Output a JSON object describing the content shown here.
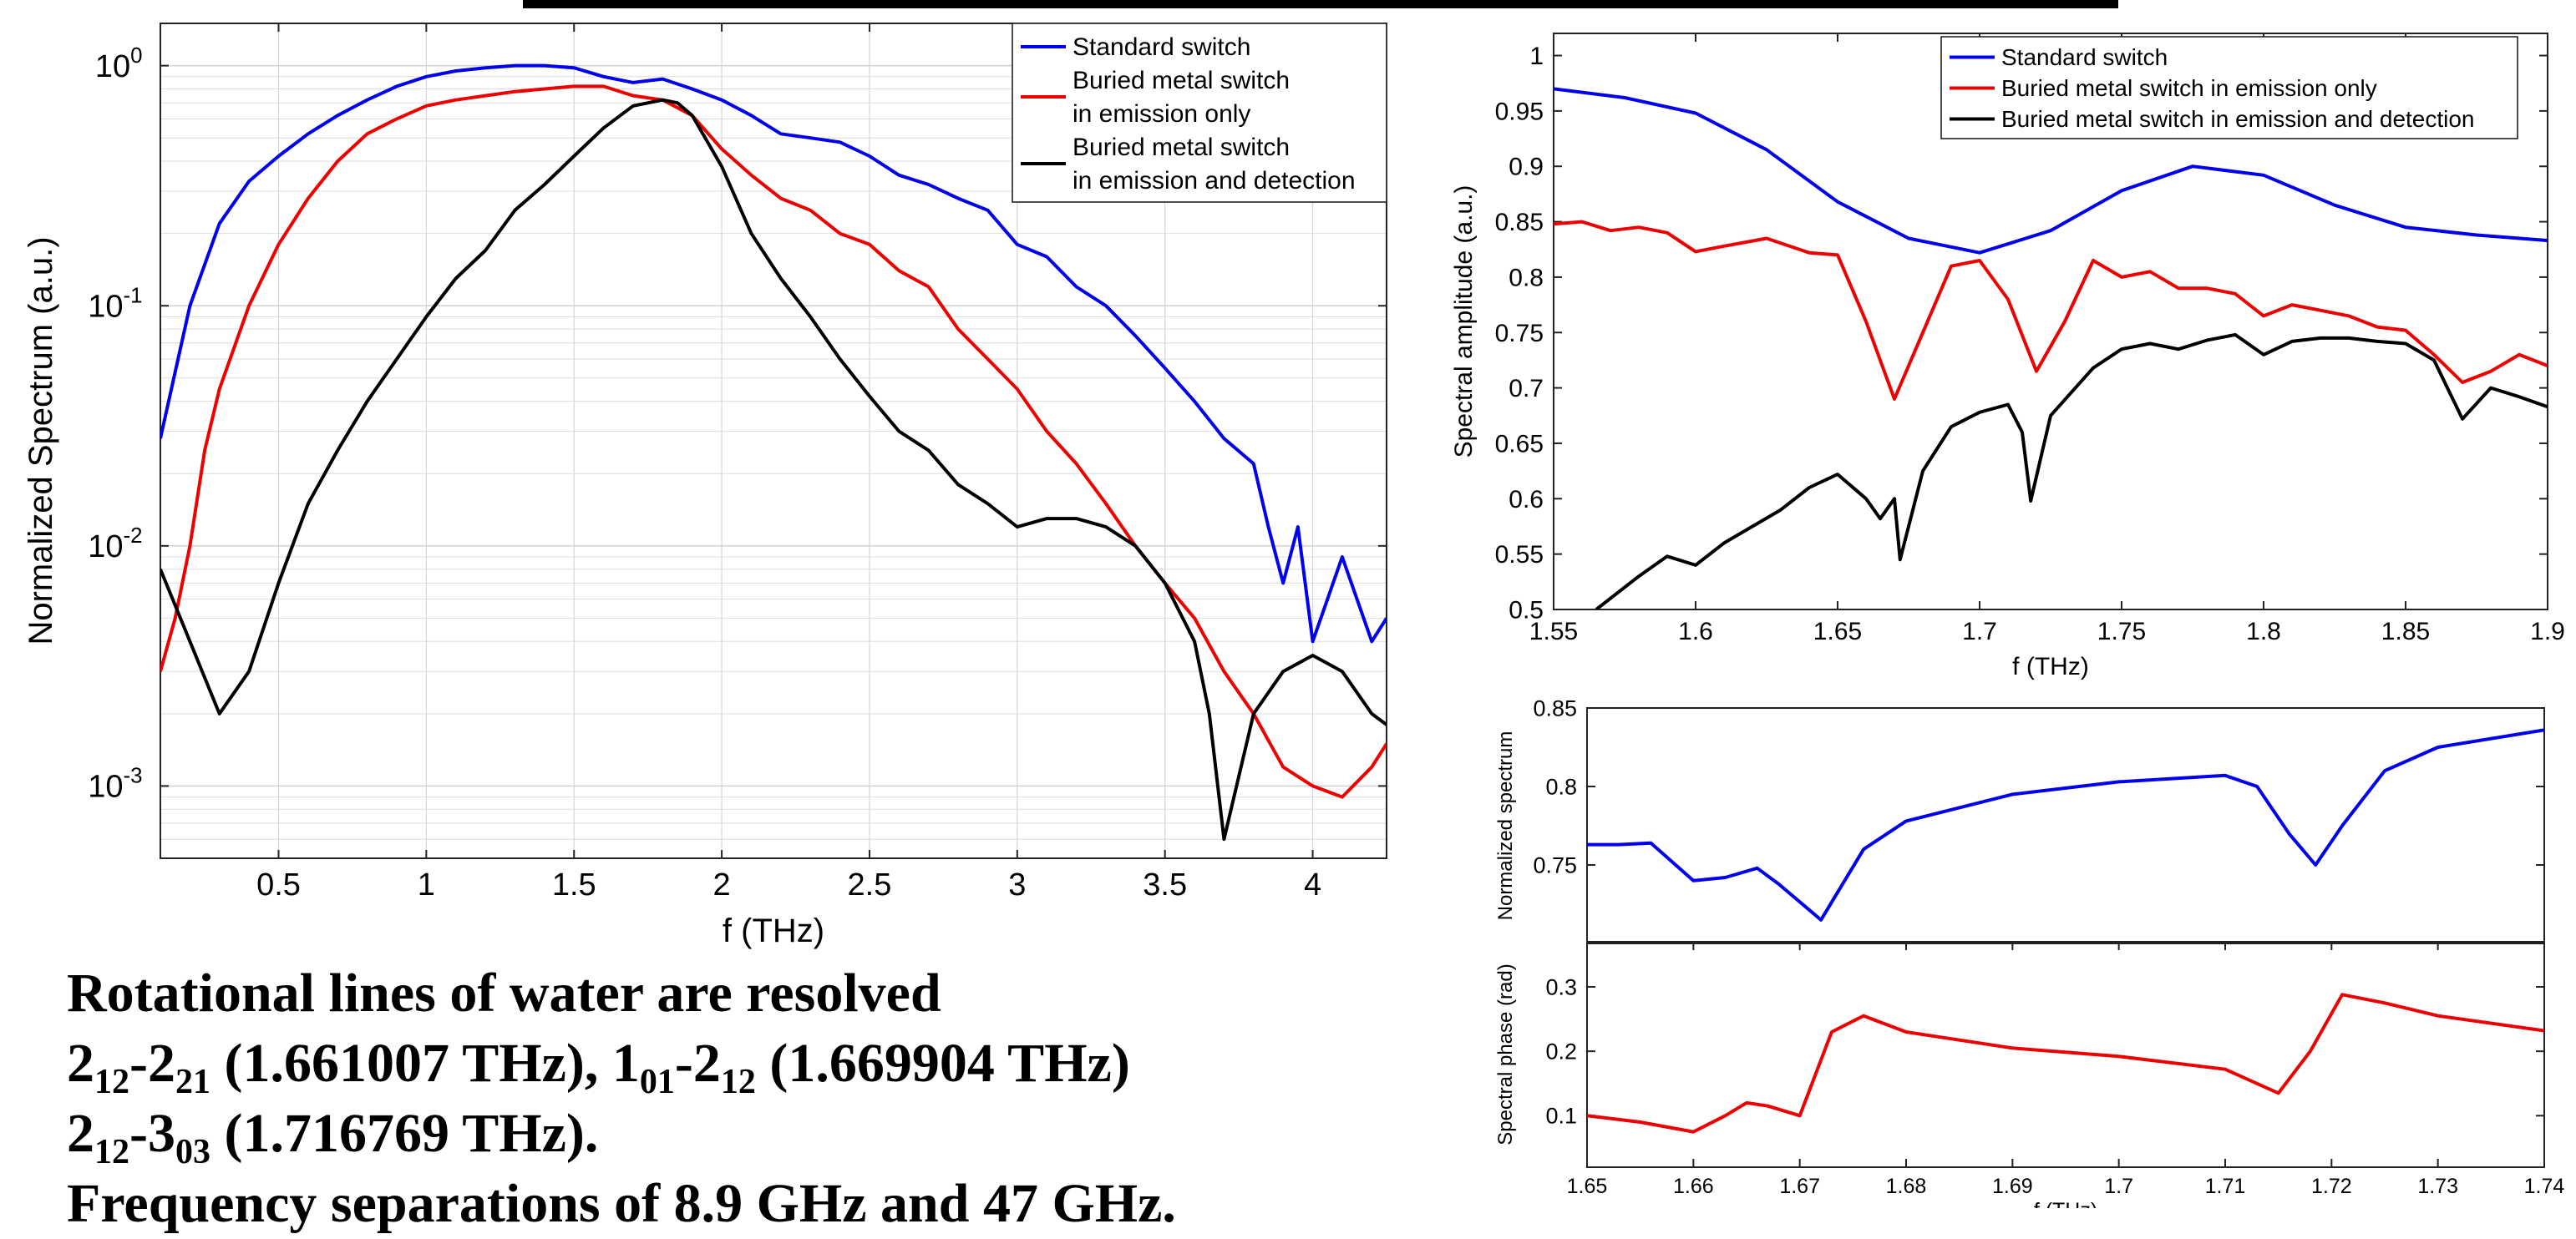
{
  "charts_meta": {
    "main": {
      "type": "line",
      "xlabel": "f (THz)",
      "ylabel": "Normalized Spectrum (a.u.)",
      "ylog": true,
      "xlim": [
        0.1,
        4.25
      ],
      "ylim": [
        0.0005,
        1.5
      ],
      "grid": true,
      "legend": "top-right"
    },
    "top_right": {
      "type": "line",
      "xlabel": "f (THz)",
      "ylabel": "Spectral amplitude (a.u.)",
      "xlim": [
        1.55,
        1.9
      ],
      "ylim": [
        0.5,
        1.02
      ],
      "legend": "top-right"
    },
    "mag": {
      "type": "line",
      "ylabel": "Normalized spectrum",
      "xlim": [
        1.65,
        1.74
      ],
      "ylim": [
        0.7,
        0.85
      ]
    },
    "phase": {
      "type": "line",
      "xlabel": "f (THz)",
      "ylabel": "Spectral phase (rad)",
      "xlim": [
        1.65,
        1.74
      ],
      "ylim": [
        0.02,
        0.37
      ]
    }
  },
  "chart_data": [
    {
      "type": "line",
      "id": "main",
      "xlabel": "f (THz)",
      "ylabel": "Normalized Spectrum (a.u.)",
      "xlim": [
        0.1,
        4.25
      ],
      "ylim": [
        0.0005,
        1.5
      ],
      "scale": "log",
      "xticks": [
        0.5,
        1,
        1.5,
        2,
        2.5,
        3,
        3.5,
        4
      ],
      "xtick_labels": [
        "0.5",
        "1",
        "1.5",
        "2",
        "2.5",
        "3",
        "3.5",
        "4"
      ],
      "yticks": [
        0.001,
        0.01,
        0.1,
        1
      ],
      "series": [
        {
          "name": "Standard switch",
          "color": "#0000ee",
          "x": [
            0.1,
            0.2,
            0.3,
            0.4,
            0.5,
            0.6,
            0.7,
            0.8,
            0.9,
            1.0,
            1.1,
            1.2,
            1.3,
            1.4,
            1.5,
            1.6,
            1.7,
            1.8,
            1.9,
            2.0,
            2.1,
            2.2,
            2.3,
            2.4,
            2.5,
            2.6,
            2.7,
            2.8,
            2.9,
            3.0,
            3.1,
            3.2,
            3.3,
            3.4,
            3.5,
            3.6,
            3.7,
            3.8,
            3.85,
            3.9,
            3.95,
            4.0,
            4.05,
            4.1,
            4.15,
            4.2,
            4.25
          ],
          "y": [
            0.028,
            0.1,
            0.22,
            0.33,
            0.42,
            0.52,
            0.62,
            0.72,
            0.82,
            0.9,
            0.95,
            0.98,
            1.0,
            1.0,
            0.98,
            0.9,
            0.85,
            0.88,
            0.8,
            0.72,
            0.62,
            0.52,
            0.5,
            0.48,
            0.42,
            0.35,
            0.32,
            0.28,
            0.25,
            0.18,
            0.16,
            0.12,
            0.1,
            0.075,
            0.055,
            0.04,
            0.028,
            0.022,
            0.012,
            0.007,
            0.012,
            0.004,
            0.006,
            0.009,
            0.006,
            0.004,
            0.005
          ]
        },
        {
          "name": "Buried metal switch\n in emission only",
          "color": "#ee0000",
          "x": [
            0.1,
            0.15,
            0.2,
            0.25,
            0.3,
            0.4,
            0.5,
            0.6,
            0.7,
            0.8,
            0.9,
            1.0,
            1.1,
            1.2,
            1.3,
            1.4,
            1.5,
            1.6,
            1.7,
            1.8,
            1.9,
            2.0,
            2.1,
            2.2,
            2.3,
            2.4,
            2.5,
            2.6,
            2.7,
            2.8,
            2.9,
            3.0,
            3.1,
            3.2,
            3.3,
            3.4,
            3.5,
            3.6,
            3.7,
            3.8,
            3.9,
            4.0,
            4.1,
            4.2,
            4.25
          ],
          "y": [
            0.003,
            0.005,
            0.01,
            0.025,
            0.045,
            0.1,
            0.18,
            0.28,
            0.4,
            0.52,
            0.6,
            0.68,
            0.72,
            0.75,
            0.78,
            0.8,
            0.82,
            0.82,
            0.75,
            0.72,
            0.62,
            0.45,
            0.35,
            0.28,
            0.25,
            0.2,
            0.18,
            0.14,
            0.12,
            0.08,
            0.06,
            0.045,
            0.03,
            0.022,
            0.015,
            0.01,
            0.007,
            0.005,
            0.003,
            0.002,
            0.0012,
            0.001,
            0.0009,
            0.0012,
            0.0015
          ]
        },
        {
          "name": "Buried metal switch\nin emission and detection",
          "color": "#000000",
          "x": [
            0.1,
            0.2,
            0.3,
            0.4,
            0.5,
            0.6,
            0.7,
            0.8,
            0.9,
            1.0,
            1.1,
            1.2,
            1.3,
            1.4,
            1.5,
            1.6,
            1.7,
            1.8,
            1.85,
            1.9,
            2.0,
            2.1,
            2.2,
            2.3,
            2.4,
            2.5,
            2.6,
            2.7,
            2.8,
            2.9,
            3.0,
            3.1,
            3.2,
            3.3,
            3.4,
            3.5,
            3.6,
            3.65,
            3.7,
            3.8,
            3.9,
            4.0,
            4.1,
            4.2,
            4.25
          ],
          "y": [
            0.008,
            0.004,
            0.002,
            0.003,
            0.007,
            0.015,
            0.025,
            0.04,
            0.06,
            0.09,
            0.13,
            0.17,
            0.25,
            0.32,
            0.42,
            0.55,
            0.68,
            0.72,
            0.7,
            0.62,
            0.38,
            0.2,
            0.13,
            0.09,
            0.06,
            0.042,
            0.03,
            0.025,
            0.018,
            0.015,
            0.012,
            0.013,
            0.013,
            0.012,
            0.01,
            0.007,
            0.004,
            0.002,
            0.0006,
            0.002,
            0.003,
            0.0035,
            0.003,
            0.002,
            0.0018
          ]
        }
      ]
    },
    {
      "type": "line",
      "id": "top_right",
      "xlabel": "f (THz)",
      "ylabel": "Spectral amplitude (a.u.)",
      "xlim": [
        1.55,
        1.9
      ],
      "ylim": [
        0.5,
        1.02
      ],
      "xticks": [
        1.55,
        1.6,
        1.65,
        1.7,
        1.75,
        1.8,
        1.85,
        1.9
      ],
      "xtick_labels": [
        "1.55",
        "1.6",
        "1.65",
        "1.7",
        "1.75",
        "1.8",
        "1.85",
        "1.9"
      ],
      "yticks": [
        0.5,
        0.55,
        0.6,
        0.65,
        0.7,
        0.75,
        0.8,
        0.85,
        0.9,
        0.95,
        1
      ],
      "ytick_labels": [
        "0.5",
        "0.55",
        "0.6",
        "0.65",
        "0.7",
        "0.75",
        "0.8",
        "0.85",
        "0.9",
        "0.95",
        "1"
      ],
      "series": [
        {
          "name": "Standard switch",
          "color": "#0000ee",
          "x": [
            1.55,
            1.575,
            1.6,
            1.625,
            1.65,
            1.675,
            1.7,
            1.725,
            1.75,
            1.775,
            1.8,
            1.825,
            1.85,
            1.875,
            1.9
          ],
          "y": [
            0.97,
            0.962,
            0.948,
            0.915,
            0.868,
            0.835,
            0.822,
            0.842,
            0.878,
            0.9,
            0.892,
            0.865,
            0.845,
            0.838,
            0.833
          ]
        },
        {
          "name": "Buried metal switch in emission only",
          "color": "#ee0000",
          "x": [
            1.55,
            1.56,
            1.57,
            1.58,
            1.59,
            1.6,
            1.61,
            1.625,
            1.64,
            1.65,
            1.66,
            1.67,
            1.68,
            1.69,
            1.7,
            1.71,
            1.72,
            1.73,
            1.74,
            1.75,
            1.76,
            1.77,
            1.78,
            1.79,
            1.8,
            1.81,
            1.82,
            1.83,
            1.84,
            1.85,
            1.86,
            1.87,
            1.88,
            1.89,
            1.9
          ],
          "y": [
            0.848,
            0.85,
            0.842,
            0.845,
            0.84,
            0.823,
            0.828,
            0.835,
            0.822,
            0.82,
            0.76,
            0.69,
            0.75,
            0.81,
            0.815,
            0.78,
            0.715,
            0.76,
            0.815,
            0.8,
            0.805,
            0.79,
            0.79,
            0.785,
            0.765,
            0.775,
            0.77,
            0.765,
            0.755,
            0.752,
            0.73,
            0.705,
            0.715,
            0.73,
            0.72
          ]
        },
        {
          "name": "Buried metal switch in emission and detection",
          "color": "#000000",
          "x": [
            1.565,
            1.58,
            1.59,
            1.6,
            1.61,
            1.62,
            1.63,
            1.64,
            1.65,
            1.66,
            1.665,
            1.67,
            1.672,
            1.68,
            1.69,
            1.7,
            1.71,
            1.715,
            1.718,
            1.725,
            1.74,
            1.75,
            1.76,
            1.77,
            1.78,
            1.79,
            1.8,
            1.81,
            1.82,
            1.83,
            1.84,
            1.85,
            1.86,
            1.87,
            1.88,
            1.89,
            1.9
          ],
          "y": [
            0.5,
            0.53,
            0.548,
            0.54,
            0.56,
            0.575,
            0.59,
            0.61,
            0.622,
            0.6,
            0.582,
            0.6,
            0.545,
            0.625,
            0.665,
            0.678,
            0.685,
            0.66,
            0.598,
            0.675,
            0.718,
            0.735,
            0.74,
            0.735,
            0.743,
            0.748,
            0.73,
            0.742,
            0.745,
            0.745,
            0.742,
            0.74,
            0.725,
            0.672,
            0.7,
            0.692,
            0.683
          ]
        }
      ]
    },
    {
      "type": "line",
      "id": "mag",
      "ylabel": "Normalized spectrum",
      "xlim": [
        1.65,
        1.74
      ],
      "ylim": [
        0.7,
        0.85
      ],
      "yticks": [
        0.75,
        0.8,
        0.85
      ],
      "ytick_labels": [
        "0.75",
        "0.8",
        "0.85"
      ],
      "series": [
        {
          "color": "#0000ee",
          "x": [
            1.65,
            1.653,
            1.656,
            1.66,
            1.663,
            1.666,
            1.668,
            1.672,
            1.676,
            1.68,
            1.69,
            1.7,
            1.71,
            1.713,
            1.716,
            1.7185,
            1.721,
            1.725,
            1.73,
            1.74
          ],
          "y": [
            0.763,
            0.763,
            0.764,
            0.74,
            0.742,
            0.748,
            0.738,
            0.715,
            0.76,
            0.778,
            0.795,
            0.803,
            0.807,
            0.8,
            0.77,
            0.75,
            0.775,
            0.81,
            0.825,
            0.836
          ]
        }
      ]
    },
    {
      "type": "line",
      "id": "phase",
      "xlabel": "f (THz)",
      "ylabel": "Spectral phase (rad)",
      "xlim": [
        1.65,
        1.74
      ],
      "ylim": [
        0.02,
        0.37
      ],
      "xticks": [
        1.65,
        1.66,
        1.67,
        1.68,
        1.69,
        1.7,
        1.71,
        1.72,
        1.73,
        1.74
      ],
      "xtick_labels": [
        "1.65",
        "1.66",
        "1.67",
        "1.68",
        "1.69",
        "1.7",
        "1.71",
        "1.72",
        "1.73",
        "1.74"
      ],
      "yticks": [
        0.1,
        0.2,
        0.3
      ],
      "ytick_labels": [
        "0.1",
        "0.2",
        "0.3"
      ],
      "series": [
        {
          "color": "#ee0000",
          "x": [
            1.65,
            1.655,
            1.66,
            1.663,
            1.665,
            1.667,
            1.67,
            1.673,
            1.676,
            1.68,
            1.69,
            1.7,
            1.71,
            1.715,
            1.718,
            1.721,
            1.725,
            1.73,
            1.74
          ],
          "y": [
            0.1,
            0.09,
            0.075,
            0.1,
            0.12,
            0.115,
            0.1,
            0.23,
            0.255,
            0.23,
            0.205,
            0.192,
            0.172,
            0.135,
            0.2,
            0.288,
            0.275,
            0.255,
            0.232
          ]
        }
      ]
    }
  ],
  "caption": {
    "line1": "Rotational lines of water are  resolved",
    "line2": {
      "a1": "2",
      "s1": "12",
      "a2": "-2",
      "s2": "21",
      "a3": " (1.661007 THz), 1",
      "s3": "01",
      "a4": "-2",
      "s4": "12",
      "a5": " (1.669904 THz)"
    },
    "line3": {
      "a1": "2",
      "s1": "12",
      "a2": "-3",
      "s2": "03",
      "a3": " (1.716769 THz)."
    },
    "line4": "Frequency separations of 8.9 GHz and 47 GHz."
  }
}
